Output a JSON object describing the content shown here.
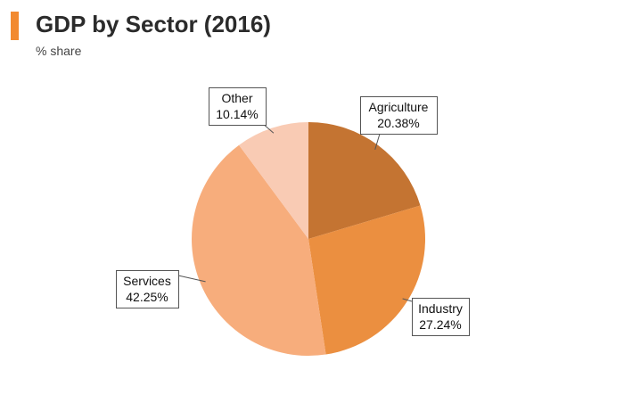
{
  "header": {
    "accent_color": "#f28a30",
    "title": "GDP by Sector (2016)",
    "subtitle": "% share"
  },
  "chart_data": {
    "type": "pie",
    "title": "GDP by Sector (2016)",
    "subtitle": "% share",
    "legend": "none",
    "slices": [
      {
        "name": "Agriculture",
        "value": 20.38,
        "label": "20.38%",
        "color": "#c47432"
      },
      {
        "name": "Industry",
        "value": 27.24,
        "label": "27.24%",
        "color": "#eb8f40"
      },
      {
        "name": "Services",
        "value": 42.25,
        "label": "42.25%",
        "color": "#f7ad7c"
      },
      {
        "name": "Other",
        "value": 10.14,
        "label": "10.14%",
        "color": "#f9cbb4"
      }
    ]
  }
}
